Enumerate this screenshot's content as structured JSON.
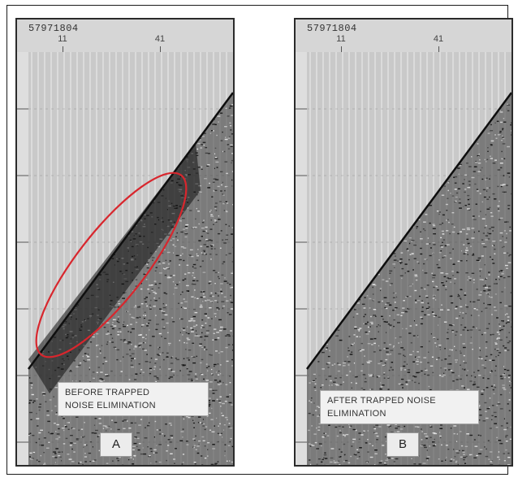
{
  "panels": [
    {
      "id_label": "57971804",
      "trace_labels": [
        "11",
        "41"
      ],
      "caption_lines": [
        "BEFORE TRAPPED",
        "NOISE ELIMINATION"
      ],
      "letter": "A",
      "highlight_color": "#d8262d"
    },
    {
      "id_label": "57971804",
      "trace_labels": [
        "11",
        "41"
      ],
      "caption_lines": [
        "AFTER TRAPPED NOISE",
        "ELIMINATION"
      ],
      "letter": "B"
    }
  ]
}
